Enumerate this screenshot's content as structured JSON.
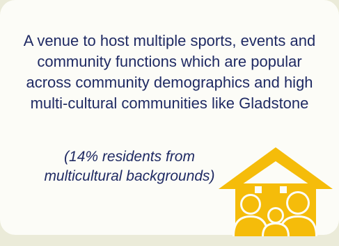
{
  "description": "A venue to host multiple sports, events and community functions which are popular across community demographics and high multi-cultural communities like Gladstone",
  "note": "(14% residents from multicultural backgrounds)",
  "icon": {
    "name": "community-house-icon",
    "color": "#f5bc0a"
  },
  "colors": {
    "text": "#1f2a63",
    "background": "#ebebd9",
    "card": "#fcfcf7"
  }
}
